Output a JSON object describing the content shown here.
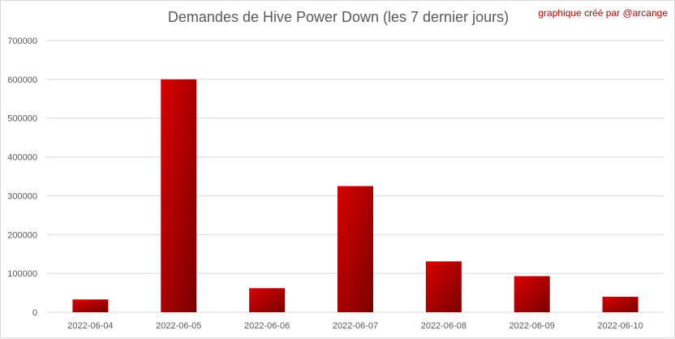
{
  "chart_data": {
    "type": "bar",
    "title": "Demandes de Hive Power Down (les 7 dernier jours)",
    "credit": "graphique créé par @arcange",
    "xlabel": "",
    "ylabel": "",
    "categories": [
      "2022-06-04",
      "2022-06-05",
      "2022-06-06",
      "2022-06-07",
      "2022-06-08",
      "2022-06-09",
      "2022-06-10"
    ],
    "values": [
      33000,
      600000,
      62000,
      325000,
      131000,
      93000,
      40000
    ],
    "ylim": [
      0,
      700000
    ],
    "yticks": [
      0,
      100000,
      200000,
      300000,
      400000,
      500000,
      600000,
      700000
    ],
    "grid": true,
    "legend": "none",
    "colors": {
      "bar_light": "#d90000",
      "bar_dark": "#7a0000",
      "grid": "#d9d9d9",
      "text": "#595959",
      "credit": "#c00000"
    }
  }
}
